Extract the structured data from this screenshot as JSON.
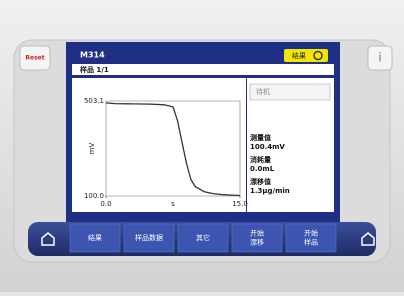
{
  "header": {
    "title": "M314",
    "result_button": "结果",
    "sample": "样品 1/1"
  },
  "status": "待机",
  "readouts": [
    {
      "label": "测量值",
      "value": "100.4mV"
    },
    {
      "label": "消耗量",
      "value": "0.0mL"
    },
    {
      "label": "漂移值",
      "value": "1.3µg/min"
    }
  ],
  "chart_data": {
    "type": "line",
    "x_label": "s",
    "y_label": "mV",
    "x": [
      0,
      1,
      3,
      5,
      6.5,
      7.5,
      8,
      8.5,
      9,
      9.5,
      10,
      11,
      12,
      13,
      15
    ],
    "values": [
      495,
      492,
      491,
      490,
      487,
      478,
      420,
      330,
      240,
      170,
      140,
      118,
      110,
      106,
      102
    ],
    "color": "#333333",
    "xlim": [
      0,
      15
    ],
    "ylim": [
      100,
      503.1
    ],
    "xticks": [
      {
        "value": 0,
        "label": "0.0"
      },
      {
        "value": 15,
        "label": "15.0"
      }
    ],
    "yticks": [
      {
        "value": 100,
        "label": "100.0"
      },
      503.1
    ],
    "grid": true
  },
  "side_buttons": {
    "reset": "Reset",
    "info": "i"
  },
  "menu": [
    [
      "结果"
    ],
    [
      "样品数据"
    ],
    [
      "其它"
    ],
    [
      "开始",
      "漂移"
    ],
    [
      "开始",
      "样品"
    ]
  ]
}
